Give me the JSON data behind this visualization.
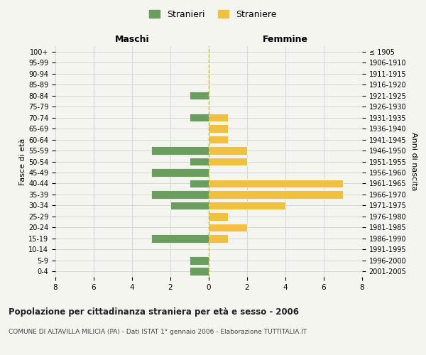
{
  "age_groups": [
    "100+",
    "95-99",
    "90-94",
    "85-89",
    "80-84",
    "75-79",
    "70-74",
    "65-69",
    "60-64",
    "55-59",
    "50-54",
    "45-49",
    "40-44",
    "35-39",
    "30-34",
    "25-29",
    "20-24",
    "15-19",
    "10-14",
    "5-9",
    "0-4"
  ],
  "birth_years": [
    "≤ 1905",
    "1906-1910",
    "1911-1915",
    "1916-1920",
    "1921-1925",
    "1926-1930",
    "1931-1935",
    "1936-1940",
    "1941-1945",
    "1946-1950",
    "1951-1955",
    "1956-1960",
    "1961-1965",
    "1966-1970",
    "1971-1975",
    "1976-1980",
    "1981-1985",
    "1986-1990",
    "1991-1995",
    "1996-2000",
    "2001-2005"
  ],
  "males": [
    0,
    0,
    0,
    0,
    1,
    0,
    1,
    0,
    0,
    3,
    1,
    3,
    1,
    3,
    2,
    0,
    0,
    3,
    0,
    1,
    1
  ],
  "females": [
    0,
    0,
    0,
    0,
    0,
    0,
    1,
    1,
    1,
    2,
    2,
    0,
    7,
    7,
    4,
    1,
    2,
    1,
    0,
    0,
    0
  ],
  "male_color": "#6b9e5e",
  "female_color": "#f0c040",
  "bar_height": 0.75,
  "xlim": 8,
  "title": "Popolazione per cittadinanza straniera per età e sesso - 2006",
  "subtitle": "COMUNE DI ALTAVILLA MILICIA (PA) - Dati ISTAT 1° gennaio 2006 - Elaborazione TUTTITALIA.IT",
  "ylabel_left": "Fasce di età",
  "ylabel_right": "Anni di nascita",
  "xlabel_left": "Maschi",
  "xlabel_right": "Femmine",
  "legend_male": "Stranieri",
  "legend_female": "Straniere",
  "background_color": "#f5f5f0",
  "grid_color": "#d0d0d0",
  "dashed_line_color": "#b8b84a"
}
